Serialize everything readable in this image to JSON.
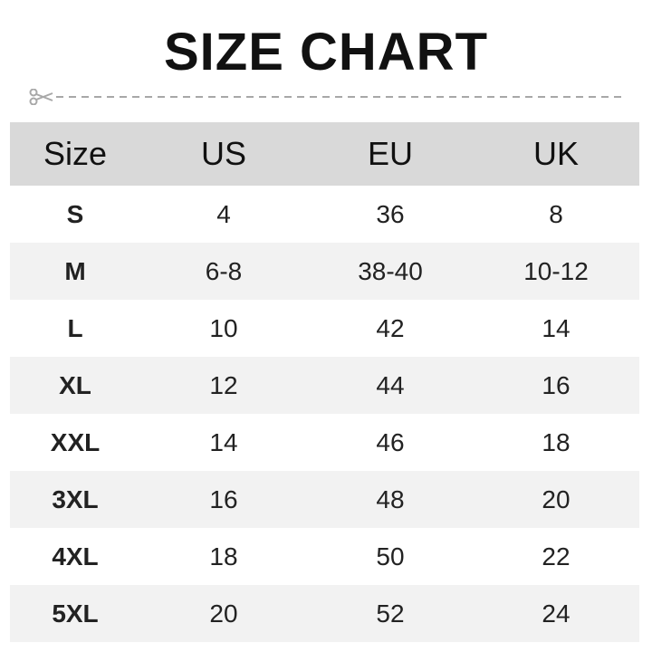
{
  "title": "SIZE CHART",
  "icons": {
    "cut": "scissors-icon"
  },
  "colors": {
    "header_bg": "#d9d9d9",
    "alt_row_bg": "#f2f2f2",
    "cut_line": "#a8a8a8"
  },
  "table": {
    "headers": [
      "Size",
      "US",
      "EU",
      "UK"
    ],
    "rows": [
      [
        "S",
        "4",
        "36",
        "8"
      ],
      [
        "M",
        "6-8",
        "38-40",
        "10-12"
      ],
      [
        "L",
        "10",
        "42",
        "14"
      ],
      [
        "XL",
        "12",
        "44",
        "16"
      ],
      [
        "XXL",
        "14",
        "46",
        "18"
      ],
      [
        "3XL",
        "16",
        "48",
        "20"
      ],
      [
        "4XL",
        "18",
        "50",
        "22"
      ],
      [
        "5XL",
        "20",
        "52",
        "24"
      ]
    ]
  }
}
